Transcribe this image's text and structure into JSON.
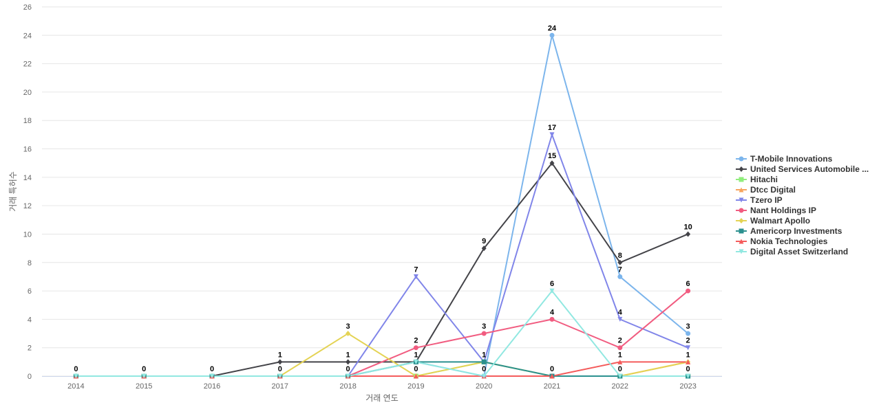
{
  "chart_data": {
    "type": "line",
    "title": "",
    "xlabel": "거래 연도",
    "ylabel": "거래 특허수",
    "x": [
      "2014",
      "2015",
      "2016",
      "2017",
      "2018",
      "2019",
      "2020",
      "2021",
      "2022",
      "2023"
    ],
    "ylim": [
      0,
      26
    ],
    "yticks": [
      0,
      2,
      4,
      6,
      8,
      10,
      12,
      14,
      16,
      18,
      20,
      22,
      24,
      26
    ],
    "grid": true,
    "legend_position": "right",
    "series": [
      {
        "name": "T-Mobile Innovations",
        "color": "#7cb5ec",
        "marker": "circle",
        "values": [
          0,
          0,
          0,
          0,
          0,
          1,
          0,
          24,
          7,
          3
        ]
      },
      {
        "name": "United Services Automobile ...",
        "color": "#434348",
        "marker": "diamond",
        "values": [
          0,
          0,
          0,
          1,
          1,
          1,
          9,
          15,
          8,
          10
        ]
      },
      {
        "name": "Hitachi",
        "color": "#90ed7d",
        "marker": "square",
        "values": [
          0,
          0,
          0,
          0,
          0,
          0,
          1,
          0,
          0,
          0
        ]
      },
      {
        "name": "Dtcc Digital",
        "color": "#f7a35c",
        "marker": "triangle",
        "values": [
          0,
          0,
          0,
          0,
          0,
          0,
          0,
          0,
          0,
          1
        ]
      },
      {
        "name": "Tzero IP",
        "color": "#8085e9",
        "marker": "triangle-down",
        "values": [
          0,
          0,
          0,
          0,
          0,
          7,
          1,
          17,
          4,
          2
        ]
      },
      {
        "name": "Nant Holdings IP",
        "color": "#f15c80",
        "marker": "circle",
        "values": [
          0,
          0,
          0,
          0,
          0,
          2,
          3,
          4,
          2,
          6
        ]
      },
      {
        "name": "Walmart Apollo",
        "color": "#e4d354",
        "marker": "diamond",
        "values": [
          0,
          0,
          0,
          0,
          3,
          0,
          1,
          0,
          0,
          1
        ]
      },
      {
        "name": "Americorp Investments",
        "color": "#2b908f",
        "marker": "square",
        "values": [
          0,
          0,
          0,
          0,
          0,
          1,
          1,
          0,
          0,
          0
        ]
      },
      {
        "name": "Nokia Technologies",
        "color": "#f45b5b",
        "marker": "triangle",
        "values": [
          0,
          0,
          0,
          0,
          0,
          0,
          0,
          0,
          1,
          1
        ]
      },
      {
        "name": "Digital Asset Switzerland",
        "color": "#91e8e1",
        "marker": "triangle-down",
        "values": [
          0,
          0,
          0,
          0,
          0,
          1,
          0,
          6,
          0,
          0
        ]
      }
    ],
    "data_labels": [
      {
        "x": "2014",
        "text": "0"
      },
      {
        "x": "2015",
        "text": "0"
      },
      {
        "x": "2016",
        "text": "0"
      },
      {
        "x": "2017",
        "text": "1",
        "value": 1
      },
      {
        "x": "2017",
        "text": "0",
        "value": 0
      },
      {
        "x": "2018",
        "text": "3",
        "value": 3
      },
      {
        "x": "2018",
        "text": "1",
        "value": 1
      },
      {
        "x": "2018",
        "text": "0",
        "value": 0
      },
      {
        "x": "2019",
        "text": "7",
        "value": 7
      },
      {
        "x": "2019",
        "text": "2",
        "value": 2
      },
      {
        "x": "2019",
        "text": "1",
        "value": 1
      },
      {
        "x": "2019",
        "text": "0",
        "value": 0
      },
      {
        "x": "2020",
        "text": "9",
        "value": 9
      },
      {
        "x": "2020",
        "text": "3",
        "value": 3
      },
      {
        "x": "2020",
        "text": "1",
        "value": 1
      },
      {
        "x": "2020",
        "text": "0",
        "value": 0
      },
      {
        "x": "2021",
        "text": "24",
        "value": 24
      },
      {
        "x": "2021",
        "text": "17",
        "value": 17
      },
      {
        "x": "2021",
        "text": "15",
        "value": 15
      },
      {
        "x": "2021",
        "text": "6",
        "value": 6
      },
      {
        "x": "2021",
        "text": "4",
        "value": 4
      },
      {
        "x": "2021",
        "text": "0",
        "value": 0
      },
      {
        "x": "2022",
        "text": "8",
        "value": 8
      },
      {
        "x": "2022",
        "text": "7",
        "value": 7
      },
      {
        "x": "2022",
        "text": "4",
        "value": 4
      },
      {
        "x": "2022",
        "text": "2",
        "value": 2
      },
      {
        "x": "2022",
        "text": "1",
        "value": 1
      },
      {
        "x": "2022",
        "text": "0",
        "value": 0
      },
      {
        "x": "2023",
        "text": "10",
        "value": 10
      },
      {
        "x": "2023",
        "text": "6",
        "value": 6
      },
      {
        "x": "2023",
        "text": "3",
        "value": 3
      },
      {
        "x": "2023",
        "text": "2",
        "value": 2
      },
      {
        "x": "2023",
        "text": "1",
        "value": 1
      },
      {
        "x": "2023",
        "text": "0",
        "value": 0
      }
    ]
  }
}
